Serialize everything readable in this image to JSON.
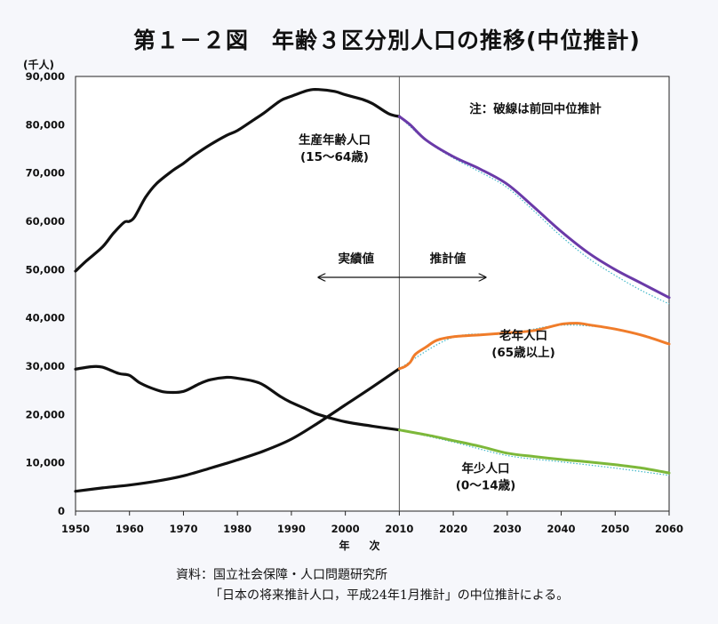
{
  "title": "第１－２図　年齢３区分別人口の推移(中位推計)",
  "colors": {
    "background": "#f6f7fb",
    "actual": "#111111",
    "working_age_projection": "#6a3aa8",
    "elderly_projection": "#f07c2a",
    "young_projection": "#7db83a",
    "previous_projection_dots": "#3fb7c8"
  },
  "chart_data": {
    "type": "line",
    "unit": "(千人)",
    "xlabel": "年　次",
    "xlim": [
      1950,
      2060
    ],
    "ylim": [
      0,
      90000
    ],
    "x_ticks": [
      1950,
      1960,
      1970,
      1980,
      1990,
      2000,
      2010,
      2020,
      2030,
      2040,
      2050,
      2060
    ],
    "y_ticks": [
      {
        "value": 0,
        "label": "0"
      },
      {
        "value": 10000,
        "label": "10,000"
      },
      {
        "value": 20000,
        "label": "20,000"
      },
      {
        "value": 30000,
        "label": "30,000"
      },
      {
        "value": 40000,
        "label": "40,000"
      },
      {
        "value": 50000,
        "label": "50,000"
      },
      {
        "value": 60000,
        "label": "60,000"
      },
      {
        "value": 70000,
        "label": "70,000"
      },
      {
        "value": 80000,
        "label": "80,000"
      },
      {
        "value": 90000,
        "label": "90,000"
      }
    ],
    "divider_year": 2010,
    "note": "注：破線は前回中位推計",
    "actual_label": "実績値",
    "projection_label": "推計値",
    "arrow_range": [
      1995,
      2026
    ],
    "series": [
      {
        "name": "生産年齢人口",
        "sub": "(15～64歳)",
        "label_pos": [
          1998,
          76000
        ],
        "actual": [
          [
            1950,
            49700
          ],
          [
            1952,
            51800
          ],
          [
            1955,
            54700
          ],
          [
            1957,
            57500
          ],
          [
            1959,
            59800
          ],
          [
            1960,
            60000
          ],
          [
            1961,
            61000
          ],
          [
            1963,
            65000
          ],
          [
            1965,
            67800
          ],
          [
            1968,
            70500
          ],
          [
            1970,
            72000
          ],
          [
            1972,
            73700
          ],
          [
            1975,
            75900
          ],
          [
            1978,
            77800
          ],
          [
            1980,
            78800
          ],
          [
            1983,
            81000
          ],
          [
            1985,
            82500
          ],
          [
            1988,
            85000
          ],
          [
            1990,
            85900
          ],
          [
            1993,
            87100
          ],
          [
            1995,
            87300
          ],
          [
            1998,
            86900
          ],
          [
            2000,
            86200
          ],
          [
            2003,
            85300
          ],
          [
            2005,
            84400
          ],
          [
            2008,
            82300
          ],
          [
            2010,
            81700
          ]
        ],
        "projection": [
          [
            2010,
            81700
          ],
          [
            2012,
            80000
          ],
          [
            2015,
            76800
          ],
          [
            2020,
            73400
          ],
          [
            2025,
            70800
          ],
          [
            2030,
            67700
          ],
          [
            2035,
            62900
          ],
          [
            2040,
            57900
          ],
          [
            2045,
            53500
          ],
          [
            2050,
            50000
          ],
          [
            2055,
            47100
          ],
          [
            2060,
            44200
          ]
        ],
        "previous": [
          [
            2010,
            81700
          ],
          [
            2015,
            76700
          ],
          [
            2020,
            73100
          ],
          [
            2025,
            70200
          ],
          [
            2030,
            67000
          ],
          [
            2035,
            62100
          ],
          [
            2040,
            56900
          ],
          [
            2045,
            52400
          ],
          [
            2050,
            48800
          ],
          [
            2055,
            45600
          ],
          [
            2060,
            42900
          ]
        ]
      },
      {
        "name": "老年人口",
        "sub": "(65歳以上)",
        "label_pos": [
          2033,
          35500
        ],
        "actual": [
          [
            1950,
            4100
          ],
          [
            1955,
            4800
          ],
          [
            1960,
            5400
          ],
          [
            1965,
            6200
          ],
          [
            1970,
            7300
          ],
          [
            1975,
            8900
          ],
          [
            1980,
            10600
          ],
          [
            1985,
            12500
          ],
          [
            1990,
            14900
          ],
          [
            1995,
            18300
          ],
          [
            2000,
            22000
          ],
          [
            2005,
            25700
          ],
          [
            2010,
            29500
          ]
        ],
        "projection": [
          [
            2010,
            29500
          ],
          [
            2011,
            29900
          ],
          [
            2012,
            30800
          ],
          [
            2013,
            32500
          ],
          [
            2015,
            34000
          ],
          [
            2017,
            35400
          ],
          [
            2020,
            36100
          ],
          [
            2025,
            36500
          ],
          [
            2030,
            36900
          ],
          [
            2035,
            37400
          ],
          [
            2040,
            38700
          ],
          [
            2043,
            38900
          ],
          [
            2045,
            38600
          ],
          [
            2050,
            37700
          ],
          [
            2055,
            36400
          ],
          [
            2060,
            34600
          ]
        ],
        "previous": [
          [
            2010,
            29500
          ],
          [
            2020,
            36000
          ],
          [
            2030,
            36700
          ],
          [
            2040,
            38500
          ],
          [
            2050,
            37600
          ],
          [
            2060,
            34600
          ]
        ]
      },
      {
        "name": "年少人口",
        "sub": "(0～14歳)",
        "label_pos": [
          2026,
          8000
        ],
        "actual": [
          [
            1950,
            29400
          ],
          [
            1953,
            29900
          ],
          [
            1955,
            29800
          ],
          [
            1958,
            28500
          ],
          [
            1960,
            28100
          ],
          [
            1962,
            26500
          ],
          [
            1965,
            25100
          ],
          [
            1967,
            24600
          ],
          [
            1970,
            24800
          ],
          [
            1973,
            26400
          ],
          [
            1975,
            27200
          ],
          [
            1978,
            27700
          ],
          [
            1980,
            27500
          ],
          [
            1983,
            26900
          ],
          [
            1985,
            26000
          ],
          [
            1988,
            23700
          ],
          [
            1990,
            22500
          ],
          [
            1993,
            21000
          ],
          [
            1995,
            20000
          ],
          [
            2000,
            18500
          ],
          [
            2005,
            17600
          ],
          [
            2010,
            16800
          ]
        ],
        "projection": [
          [
            2010,
            16800
          ],
          [
            2015,
            15800
          ],
          [
            2020,
            14600
          ],
          [
            2025,
            13400
          ],
          [
            2030,
            12000
          ],
          [
            2035,
            11300
          ],
          [
            2040,
            10700
          ],
          [
            2045,
            10200
          ],
          [
            2050,
            9600
          ],
          [
            2055,
            8900
          ],
          [
            2060,
            7900
          ]
        ],
        "previous": [
          [
            2010,
            16800
          ],
          [
            2020,
            14300
          ],
          [
            2030,
            11500
          ],
          [
            2040,
            10200
          ],
          [
            2050,
            8900
          ],
          [
            2060,
            7400
          ]
        ]
      }
    ]
  },
  "source": {
    "line1": "資料：国立社会保障・人口問題研究所",
    "line2": "「日本の将来推計人口，平成24年1月推計」の中位推計による。"
  }
}
